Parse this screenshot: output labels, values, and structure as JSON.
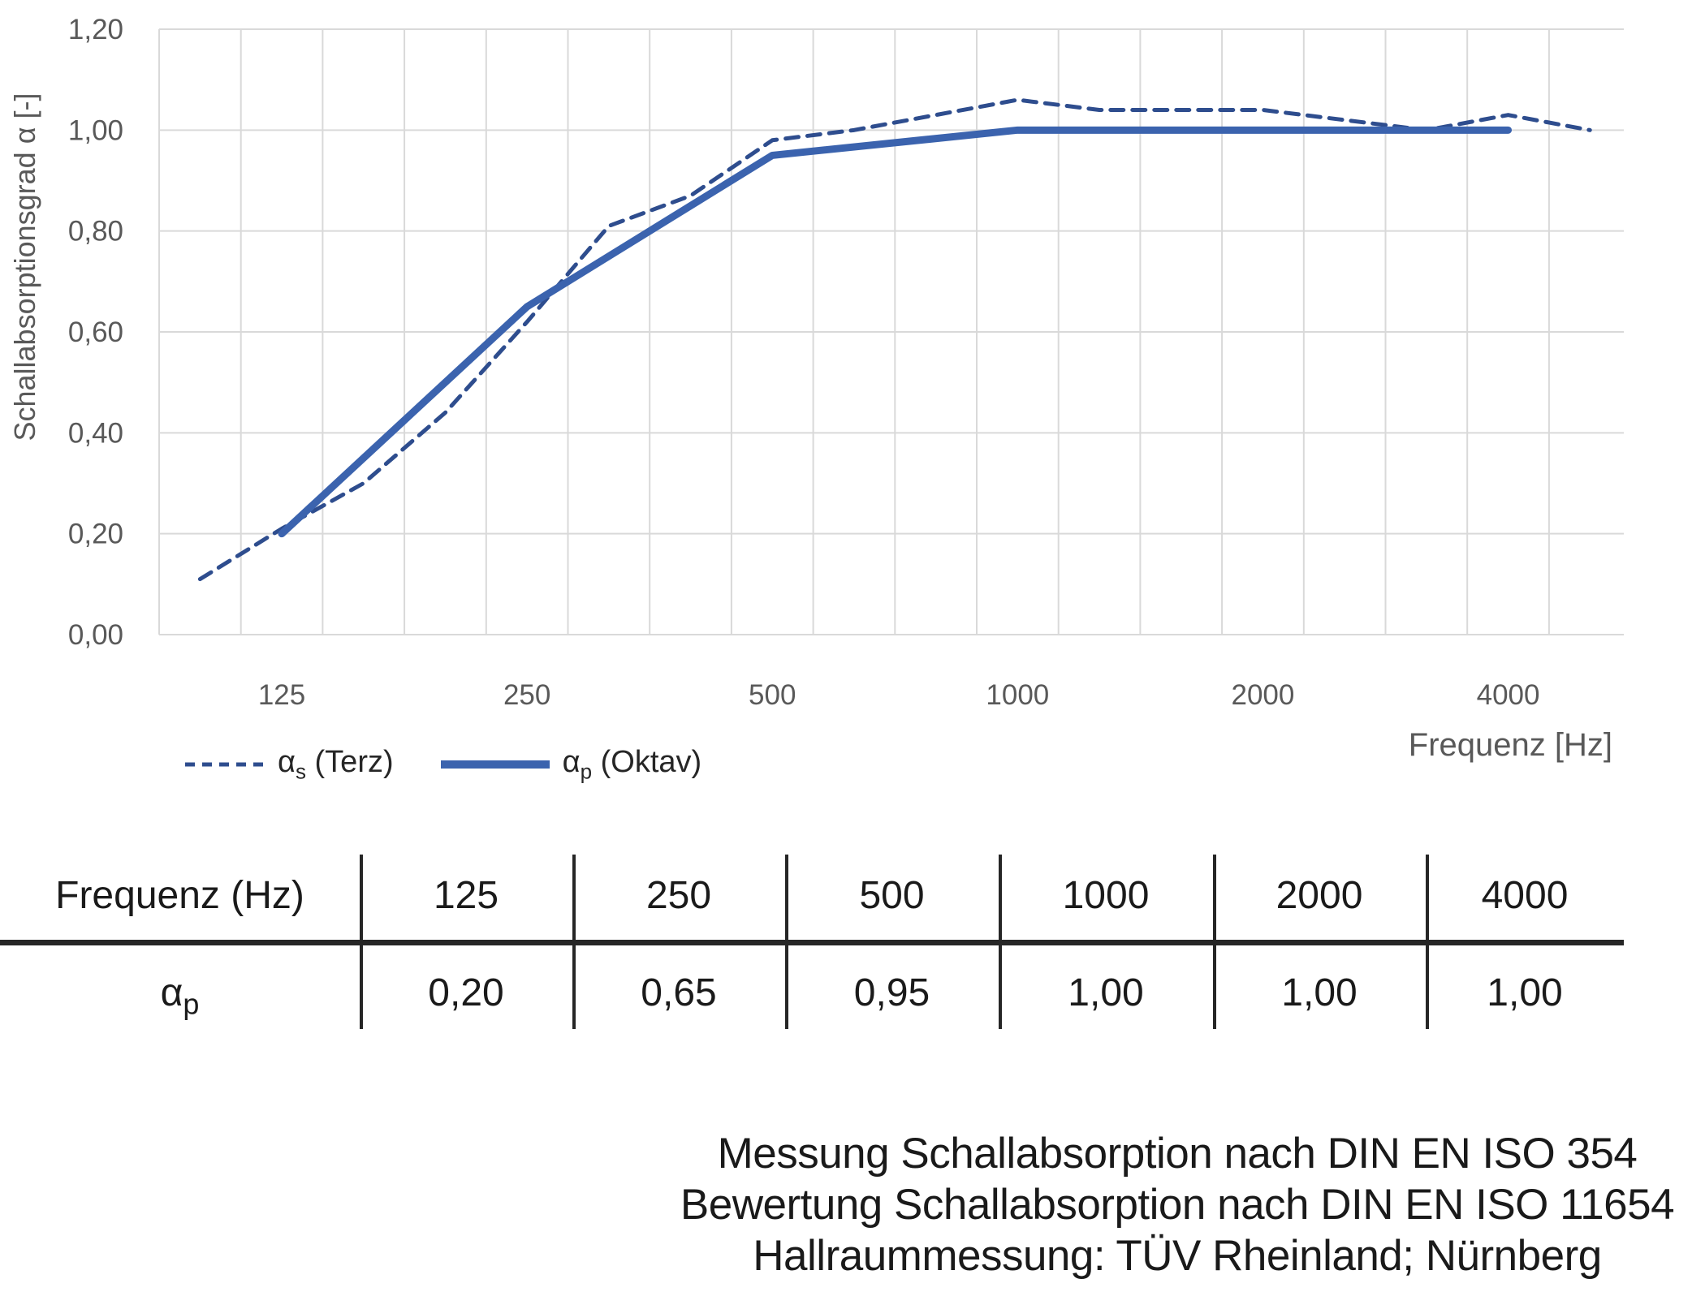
{
  "figure": {
    "y_axis_title": "Schallabsorptionsgrad α [-]",
    "x_axis_label": "Frequenz [Hz]"
  },
  "chart_data": {
    "type": "line",
    "title": "",
    "xlabel": "Frequenz [Hz]",
    "ylabel": "Schallabsorptionsgrad α [-]",
    "x_scale": "log-third-octave-bands",
    "bands_hz": [
      100,
      125,
      160,
      200,
      250,
      315,
      400,
      500,
      630,
      800,
      1000,
      1250,
      1600,
      2000,
      2500,
      3150,
      4000,
      5000
    ],
    "x_tick_labels": [
      "125",
      "250",
      "500",
      "1000",
      "2000",
      "4000"
    ],
    "x_tick_band_hz": [
      125,
      250,
      500,
      1000,
      2000,
      4000
    ],
    "y_tick_labels": [
      "0,00",
      "0,20",
      "0,40",
      "0,60",
      "0,80",
      "1,00",
      "1,20"
    ],
    "ylim": [
      0,
      1.2
    ],
    "grid": true,
    "legend_position": "bottom-left",
    "series": [
      {
        "name": "αs (Terz)",
        "style": "dashed",
        "color": "#2E4D8E",
        "x_hz": [
          100,
          125,
          160,
          200,
          250,
          315,
          400,
          500,
          630,
          800,
          1000,
          1250,
          1600,
          2000,
          2500,
          3150,
          4000,
          5000
        ],
        "values": [
          0.11,
          0.21,
          0.3,
          0.44,
          0.62,
          0.81,
          0.87,
          0.98,
          1.0,
          1.03,
          1.06,
          1.04,
          1.04,
          1.04,
          1.02,
          1.0,
          1.03,
          1.0
        ]
      },
      {
        "name": "αp (Oktav)",
        "style": "solid",
        "color": "#3B63AE",
        "x_hz": [
          125,
          250,
          500,
          1000,
          2000,
          4000
        ],
        "values": [
          0.2,
          0.65,
          0.95,
          1.0,
          1.0,
          1.0
        ]
      }
    ]
  },
  "legend": {
    "terz": {
      "alpha": "α",
      "sub": "s",
      "rest": " (Terz)"
    },
    "oktav": {
      "alpha": "α",
      "sub": "p",
      "rest": " (Oktav)"
    }
  },
  "table": {
    "header_label": "Frequenz (Hz)",
    "columns": [
      "125",
      "250",
      "500",
      "1000",
      "2000",
      "4000"
    ],
    "row_label": {
      "alpha": "α",
      "sub": "p"
    },
    "values": [
      "0,20",
      "0,65",
      "0,95",
      "1,00",
      "1,00",
      "1,00"
    ]
  },
  "footer": {
    "line1": "Messung Schallabsorption nach DIN EN ISO 354",
    "line2": "Bewertung Schallabsorption nach DIN EN ISO 11654",
    "line3": "Hallraummessung: TÜV Rheinland; Nürnberg"
  },
  "colors": {
    "solid_line": "#3B63AE",
    "dashed_line": "#2E4D8E",
    "grid": "#D9D9D9",
    "axis_text": "#595959",
    "table_rule": "#262626",
    "text": "#1A1A1A"
  }
}
